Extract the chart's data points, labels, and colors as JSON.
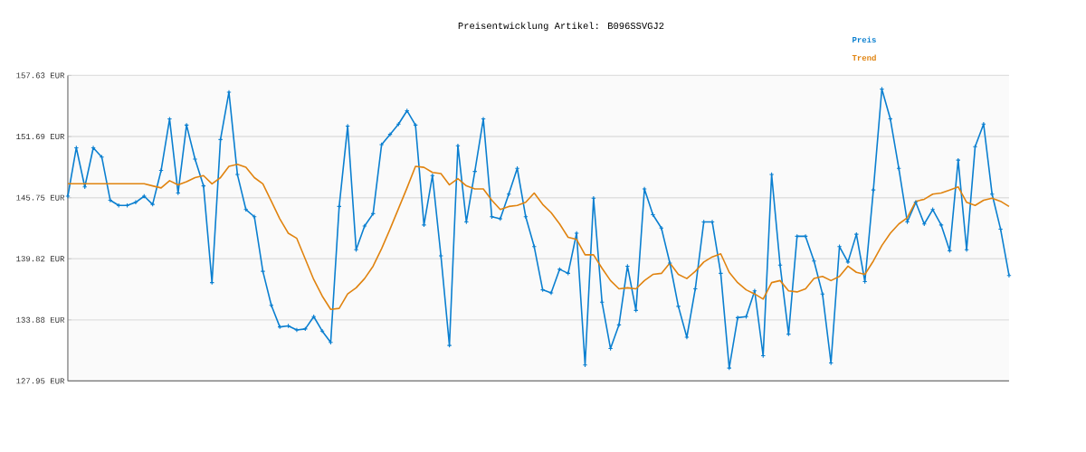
{
  "chart_data": {
    "type": "line",
    "title": "Preisentwicklung Artikel: B096SSVGJ2",
    "categories": [
      null,
      null,
      null,
      null,
      null,
      null,
      null,
      null,
      null,
      null,
      null,
      null,
      null,
      null,
      null,
      null,
      null,
      null,
      null,
      null,
      null,
      null,
      null,
      null,
      null,
      null,
      null,
      null,
      null,
      null,
      null,
      null,
      null,
      null,
      null,
      null,
      null,
      null,
      null,
      null,
      null,
      null,
      null,
      null,
      null,
      null,
      null,
      null,
      null,
      null,
      null,
      null,
      null,
      null,
      null,
      null,
      null,
      null,
      null,
      null,
      null,
      null,
      null,
      null,
      null,
      null,
      null,
      null,
      null,
      null,
      null,
      null,
      null,
      null,
      null,
      null,
      null,
      null,
      null,
      null,
      null,
      null,
      null,
      null,
      null,
      null,
      null,
      null,
      null,
      null,
      null,
      null,
      null,
      null,
      null,
      null,
      null,
      null,
      null,
      null,
      null,
      null,
      null,
      null,
      null,
      null,
      null,
      null,
      null,
      null,
      null,
      null
    ],
    "series": [
      {
        "name": "Preis",
        "color": "#0a7fd0",
        "marker": "cross",
        "values": [
          145.9,
          150.6,
          146.8,
          150.6,
          149.7,
          145.5,
          145.0,
          145.0,
          145.3,
          145.9,
          145.1,
          148.4,
          153.4,
          146.2,
          152.8,
          149.5,
          146.9,
          137.5,
          151.4,
          156.0,
          148.0,
          144.6,
          143.9,
          138.6,
          135.3,
          133.2,
          133.3,
          132.9,
          133.0,
          134.2,
          132.8,
          131.7,
          144.9,
          152.7,
          140.7,
          143.0,
          144.2,
          150.9,
          151.9,
          152.9,
          154.2,
          152.8,
          143.1,
          147.9,
          140.1,
          131.4,
          150.8,
          143.4,
          148.3,
          153.4,
          143.9,
          143.7,
          146.1,
          148.6,
          143.9,
          141.0,
          136.8,
          136.5,
          138.8,
          138.4,
          142.3,
          129.5,
          145.7,
          135.6,
          131.1,
          133.4,
          139.1,
          134.8,
          146.6,
          144.1,
          142.8,
          139.4,
          135.2,
          132.2,
          136.9,
          143.4,
          143.4,
          138.4,
          129.2,
          134.1,
          134.2,
          136.7,
          130.4,
          148.0,
          139.2,
          132.5,
          142.0,
          142.0,
          139.6,
          136.4,
          129.7,
          141.0,
          139.5,
          142.2,
          137.6,
          146.5,
          156.3,
          153.4,
          148.6,
          143.4,
          145.3,
          143.2,
          144.6,
          143.1,
          140.6,
          149.4,
          140.7,
          150.7,
          152.9,
          146.1,
          142.7,
          138.2
        ]
      },
      {
        "name": "Trend",
        "color": "#e0830f",
        "marker": "none",
        "values": [
          147.1,
          147.1,
          147.1,
          147.1,
          147.1,
          147.1,
          147.1,
          147.1,
          147.1,
          147.1,
          146.9,
          146.7,
          147.4,
          147.0,
          147.3,
          147.7,
          147.9,
          147.1,
          147.7,
          148.8,
          149.0,
          148.7,
          147.7,
          147.1,
          145.4,
          143.7,
          142.3,
          141.8,
          139.8,
          137.8,
          136.2,
          134.9,
          135.0,
          136.4,
          137.0,
          137.9,
          139.1,
          140.8,
          142.7,
          144.7,
          146.7,
          148.8,
          148.7,
          148.2,
          148.1,
          147.0,
          147.6,
          146.9,
          146.6,
          146.6,
          145.5,
          144.6,
          144.9,
          145.0,
          145.3,
          146.2,
          145.1,
          144.3,
          143.2,
          141.9,
          141.7,
          140.2,
          140.2,
          138.9,
          137.7,
          136.9,
          137.0,
          136.9,
          137.7,
          138.3,
          138.4,
          139.4,
          138.3,
          137.9,
          138.6,
          139.5,
          140.0,
          140.3,
          138.5,
          137.5,
          136.8,
          136.4,
          135.9,
          137.5,
          137.7,
          136.7,
          136.6,
          136.9,
          137.9,
          138.1,
          137.7,
          138.1,
          139.1,
          138.5,
          138.3,
          139.6,
          141.1,
          142.3,
          143.2,
          143.8,
          145.4,
          145.6,
          146.1,
          146.2,
          146.5,
          146.8,
          145.3,
          145.0,
          145.5,
          145.7,
          145.4,
          144.9
        ]
      }
    ],
    "ylim": [
      127.95,
      157.63
    ],
    "yticks": [
      {
        "value": 127.95,
        "label": "127.95 EUR"
      },
      {
        "value": 133.88,
        "label": "133.88 EUR"
      },
      {
        "value": 139.82,
        "label": "139.82 EUR"
      },
      {
        "value": 145.75,
        "label": "145.75 EUR"
      },
      {
        "value": 151.69,
        "label": "151.69 EUR"
      },
      {
        "value": 157.63,
        "label": "157.63 EUR"
      }
    ],
    "grid": "y",
    "legend": "top right",
    "tick_labels": "y",
    "line_style": "solid"
  }
}
